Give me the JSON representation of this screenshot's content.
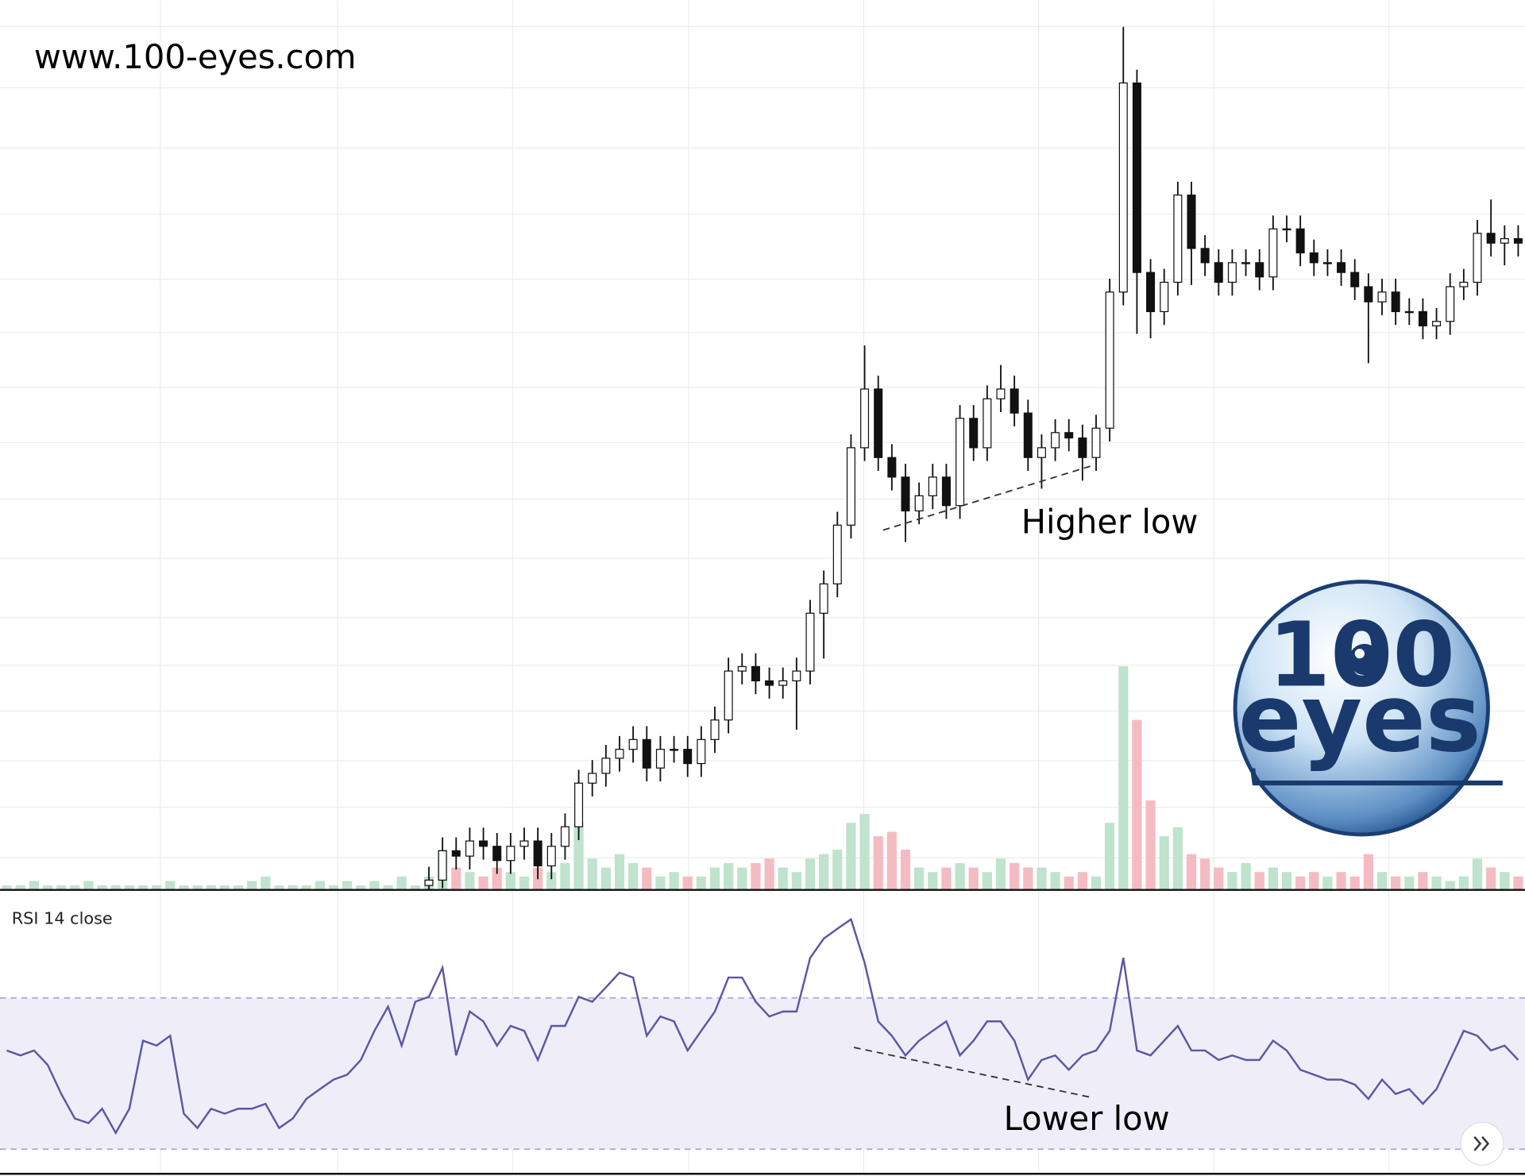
{
  "watermark": "www.100-eyes.com",
  "logo": {
    "top": "100",
    "bottom": "eyes"
  },
  "chart_data": [
    {
      "type": "candlestick",
      "ylim": [
        0,
        100
      ],
      "grid": true,
      "up_color": "#ffffff",
      "down_color": "#111111",
      "annotations": [
        "Higher low"
      ],
      "open": [
        null,
        null,
        null,
        null,
        null,
        null,
        null,
        null,
        null,
        null,
        null,
        null,
        null,
        null,
        null,
        null,
        null,
        null,
        null,
        null,
        null,
        null,
        null,
        null,
        null,
        null,
        null,
        null,
        null,
        null,
        null,
        0.5,
        1.1,
        4.4,
        3.8,
        5.5,
        4.9,
        3.3,
        4.9,
        5.5,
        2.7,
        4.9,
        7.1,
        12.0,
        13.1,
        14.8,
        15.8,
        16.9,
        13.7,
        15.8,
        15.8,
        14.2,
        16.9,
        19.1,
        24.6,
        25.1,
        23.5,
        23.0,
        23.5,
        24.6,
        31.1,
        34.4,
        41.0,
        49.7,
        56.3,
        48.6,
        46.4,
        42.6,
        44.3,
        46.4,
        43.2,
        53.0,
        49.7,
        55.2,
        56.3,
        53.6,
        48.6,
        49.7,
        51.4,
        50.8,
        48.6,
        51.9,
        67.2,
        90.7,
        69.4,
        65.0,
        68.3,
        78.1,
        72.1,
        70.5,
        68.3,
        70.5,
        70.5,
        68.9,
        74.3,
        74.3,
        71.6,
        70.5,
        70.5,
        69.4,
        67.8,
        66.1,
        67.2,
        65.0,
        65.0,
        63.4,
        63.9,
        67.8,
        68.3,
        73.8,
        72.7,
        73.2
      ],
      "high": [
        null,
        null,
        null,
        null,
        null,
        null,
        null,
        null,
        null,
        null,
        null,
        null,
        null,
        null,
        null,
        null,
        null,
        null,
        null,
        null,
        null,
        null,
        null,
        null,
        null,
        null,
        null,
        null,
        null,
        null,
        null,
        2.6,
        5.9,
        5.9,
        7.0,
        7.0,
        6.4,
        6.4,
        7.0,
        7.0,
        6.4,
        8.6,
        13.5,
        14.6,
        16.3,
        17.3,
        18.4,
        18.4,
        17.3,
        17.3,
        17.3,
        18.4,
        20.6,
        26.1,
        26.6,
        26.6,
        25.0,
        25.0,
        26.1,
        32.6,
        35.9,
        42.5,
        51.2,
        61.2,
        57.8,
        50.1,
        47.9,
        45.8,
        47.9,
        47.9,
        54.5,
        54.5,
        56.7,
        59.0,
        57.8,
        55.1,
        51.2,
        52.9,
        52.9,
        52.3,
        53.4,
        68.7,
        97.0,
        92.2,
        70.9,
        69.8,
        79.6,
        79.6,
        73.6,
        72.0,
        72.0,
        72.0,
        72.0,
        75.8,
        75.8,
        75.8,
        73.1,
        72.0,
        72.0,
        70.9,
        69.3,
        68.7,
        68.7,
        66.5,
        66.5,
        65.4,
        69.3,
        69.8,
        75.3,
        77.6,
        74.7,
        74.7
      ],
      "low": [
        null,
        null,
        null,
        null,
        null,
        null,
        null,
        null,
        null,
        null,
        null,
        null,
        null,
        null,
        null,
        null,
        null,
        null,
        null,
        null,
        null,
        null,
        null,
        null,
        null,
        null,
        null,
        null,
        null,
        null,
        null,
        0,
        0.2,
        2.3,
        2.3,
        3.4,
        1.8,
        1.8,
        3.4,
        1.2,
        1.2,
        3.4,
        5.6,
        10.5,
        11.6,
        13.3,
        14.3,
        12.2,
        12.2,
        14.3,
        12.7,
        12.7,
        15.4,
        17.6,
        23.1,
        22.0,
        21.5,
        21.5,
        18.0,
        23.1,
        26.0,
        32.9,
        39.5,
        48.2,
        47.1,
        44.9,
        39.1,
        41.1,
        42.8,
        41.7,
        41.7,
        48.2,
        48.2,
        53.7,
        52.1,
        47.1,
        45.1,
        48.2,
        49.3,
        46.0,
        47.1,
        50.4,
        65.7,
        62.5,
        62.0,
        63.5,
        66.8,
        68.0,
        69.0,
        66.8,
        66.8,
        69.0,
        67.4,
        67.4,
        72.8,
        70.1,
        69.0,
        69.0,
        67.9,
        66.3,
        59.2,
        64.6,
        63.5,
        63.5,
        61.9,
        61.9,
        62.4,
        66.3,
        66.8,
        71.2,
        70.2,
        71.2
      ],
      "close": [
        null,
        null,
        null,
        null,
        null,
        null,
        null,
        null,
        null,
        null,
        null,
        null,
        null,
        null,
        null,
        null,
        null,
        null,
        null,
        null,
        null,
        null,
        null,
        null,
        null,
        null,
        null,
        null,
        null,
        null,
        null,
        1.1,
        4.4,
        3.8,
        5.5,
        4.9,
        3.3,
        4.9,
        5.5,
        2.7,
        4.9,
        7.1,
        12.0,
        13.1,
        14.8,
        15.8,
        16.9,
        13.7,
        15.8,
        15.8,
        14.2,
        16.9,
        19.1,
        24.6,
        25.1,
        23.5,
        23.0,
        23.5,
        24.6,
        31.1,
        34.4,
        41.0,
        49.7,
        56.3,
        48.6,
        46.4,
        42.6,
        44.3,
        46.4,
        43.2,
        53.0,
        49.7,
        55.2,
        56.3,
        53.6,
        48.6,
        49.7,
        51.4,
        50.8,
        48.6,
        51.9,
        67.2,
        90.7,
        69.4,
        65.0,
        68.3,
        78.1,
        72.1,
        70.5,
        68.3,
        70.5,
        70.5,
        68.9,
        74.3,
        74.3,
        71.6,
        70.5,
        70.5,
        69.4,
        67.8,
        66.1,
        67.2,
        65.0,
        65.0,
        63.4,
        63.9,
        67.8,
        68.3,
        73.8,
        72.7,
        73.2,
        72.7
      ],
      "volume": {
        "ylim": [
          0,
          100
        ],
        "up_color": "#bfe3cd",
        "down_color": "#f4bcc2",
        "values": [
          1,
          1,
          2,
          1,
          1,
          1,
          2,
          1,
          1,
          1,
          1,
          1,
          2,
          1,
          1,
          1,
          1,
          1,
          2,
          3,
          1,
          1,
          1,
          2,
          1,
          2,
          1,
          2,
          1,
          3,
          1,
          3,
          9,
          5,
          4,
          3,
          5,
          4,
          3,
          5,
          4,
          6,
          15,
          7,
          5,
          8,
          6,
          5,
          3,
          4,
          3,
          3,
          5,
          6,
          5,
          6,
          7,
          5,
          4,
          7,
          8,
          9,
          15,
          17,
          12,
          13,
          9,
          5,
          4,
          5,
          6,
          5,
          4,
          7,
          6,
          5,
          5,
          4,
          3,
          4,
          3,
          15,
          50,
          38,
          20,
          12,
          14,
          8,
          7,
          5,
          4,
          6,
          4,
          5,
          4,
          3,
          4,
          3,
          4,
          3,
          8,
          4,
          3,
          3,
          4,
          3,
          2,
          3,
          7,
          5,
          4,
          3
        ]
      }
    },
    {
      "type": "line",
      "title": "RSI 14 close",
      "color": "#5b57a6",
      "ylim": [
        24,
        96
      ],
      "levels": [
        70,
        30
      ],
      "band_color": "#efeef8",
      "level_color": "#a8a5dc",
      "annotations": [
        "Lower low"
      ],
      "values": [
        56.1,
        54.8,
        56.1,
        52.3,
        44.6,
        38.1,
        36.9,
        40.7,
        34.3,
        40.7,
        58.7,
        57.4,
        60.0,
        39.4,
        35.6,
        40.7,
        39.4,
        40.7,
        40.7,
        42.0,
        35.6,
        38.1,
        43.3,
        45.9,
        48.4,
        49.7,
        53.6,
        61.3,
        67.7,
        57.4,
        69.0,
        70.3,
        78.0,
        54.8,
        66.4,
        63.8,
        57.4,
        62.6,
        61.3,
        53.6,
        62.6,
        62.6,
        70.3,
        69.0,
        72.8,
        76.7,
        75.4,
        60.0,
        65.1,
        63.8,
        56.1,
        61.3,
        66.4,
        75.4,
        75.4,
        69.0,
        65.1,
        66.4,
        66.4,
        80.6,
        85.7,
        88.3,
        90.8,
        79.3,
        63.8,
        60.0,
        54.8,
        58.7,
        61.3,
        63.8,
        54.8,
        58.7,
        63.8,
        63.8,
        58.7,
        48.4,
        53.6,
        54.8,
        51.0,
        54.8,
        56.1,
        61.3,
        80.6,
        56.1,
        54.8,
        58.7,
        62.6,
        56.1,
        56.1,
        53.6,
        54.8,
        53.6,
        53.6,
        58.7,
        56.1,
        51.0,
        49.7,
        48.4,
        48.4,
        47.1,
        43.3,
        48.4,
        44.6,
        45.9,
        42.0,
        45.9,
        53.6,
        61.3,
        60.0,
        56.1,
        57.4,
        53.6
      ]
    }
  ]
}
